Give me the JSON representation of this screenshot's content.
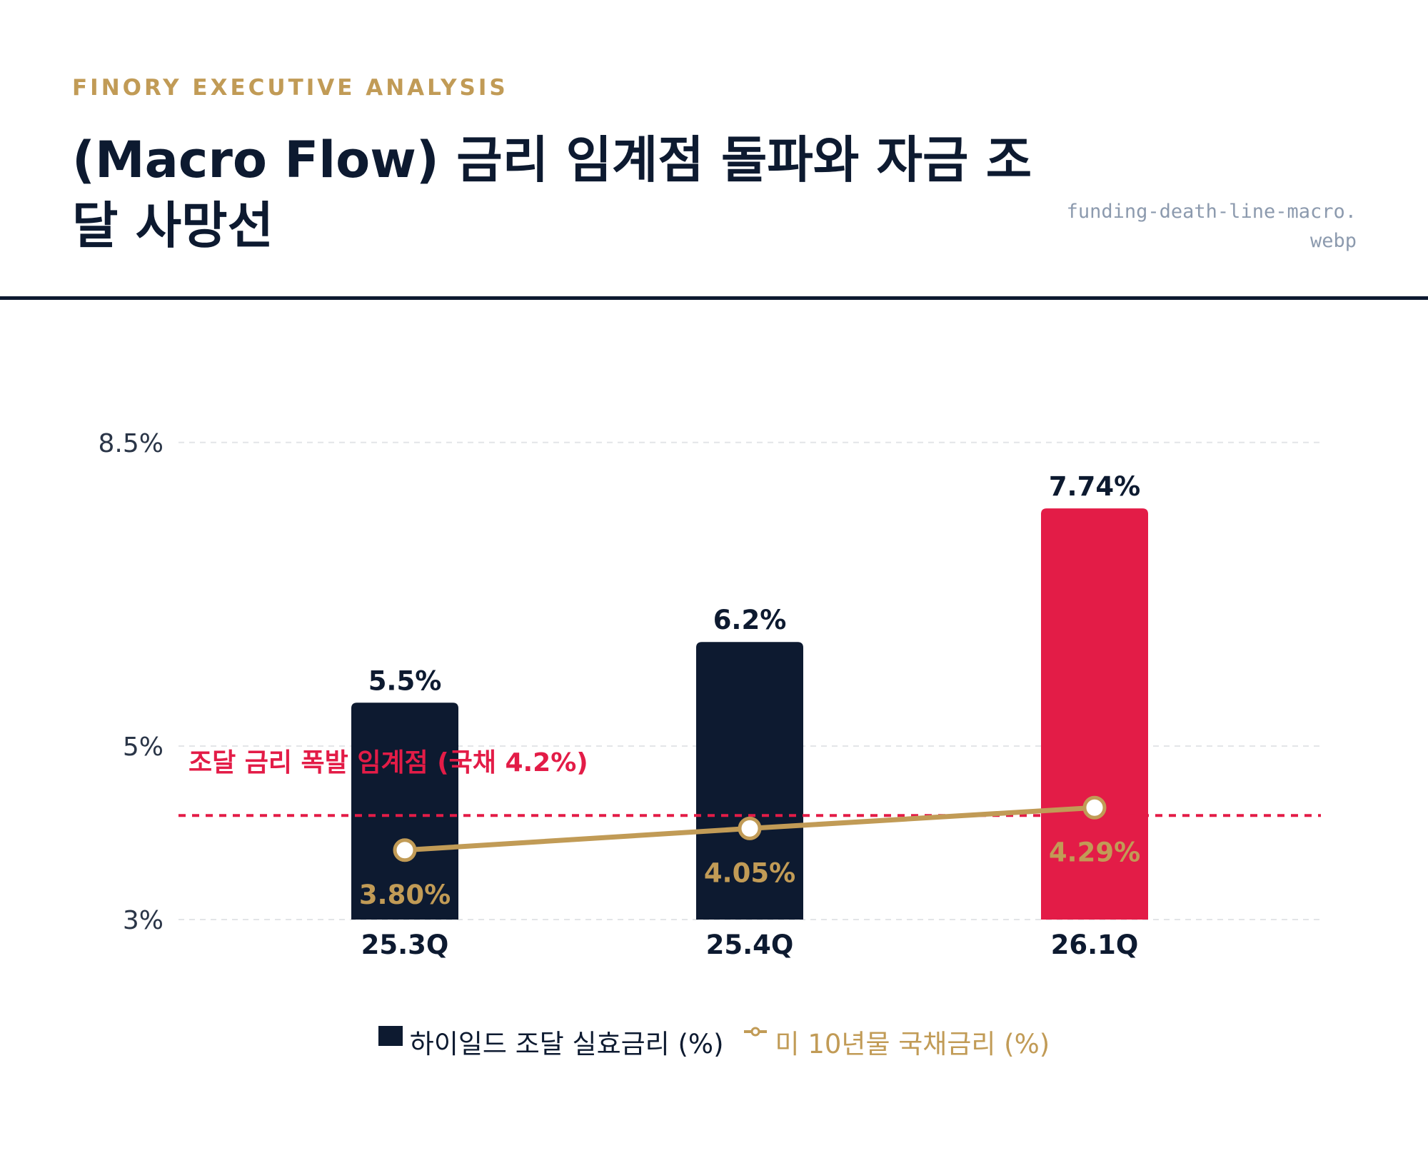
{
  "header": {
    "eyebrow": "FINORY EXECUTIVE ANALYSIS",
    "title": "(Macro Flow) 금리 임계점 돌파와 자금 조달 사망선",
    "filename": "funding-death-line-macro.webp"
  },
  "colors": {
    "navy": "#0d1a30",
    "crimson": "#e31c47",
    "gold": "#c19b56",
    "grid": "#e3e5e8",
    "muted": "#8c9aae"
  },
  "chart_data": {
    "type": "bar",
    "categories": [
      "25.3Q",
      "25.4Q",
      "26.1Q"
    ],
    "series": [
      {
        "name": "하이일드 조달 실효금리 (%)",
        "kind": "bar",
        "values": [
          5.5,
          6.2,
          7.74
        ],
        "labels": [
          "5.5%",
          "6.2%",
          "7.74%"
        ],
        "colors": [
          "#0d1a30",
          "#0d1a30",
          "#e31c47"
        ]
      },
      {
        "name": "미 10년물 국채금리 (%)",
        "kind": "line",
        "values": [
          3.8,
          4.05,
          4.29
        ],
        "labels": [
          "3.80%",
          "4.05%",
          "4.29%"
        ],
        "color": "#c19b56"
      }
    ],
    "y_ticks": [
      {
        "value": 3,
        "label": "3%"
      },
      {
        "value": 5,
        "label": "5%"
      },
      {
        "value": 8.5,
        "label": "8.5%"
      }
    ],
    "ylim": [
      3,
      8.5
    ],
    "threshold": {
      "value": 4.2,
      "label": "조달 금리 폭발 임계점 (국채 4.2%)",
      "color": "#e31c47"
    },
    "grid": true,
    "legend_position": "bottom-center"
  }
}
